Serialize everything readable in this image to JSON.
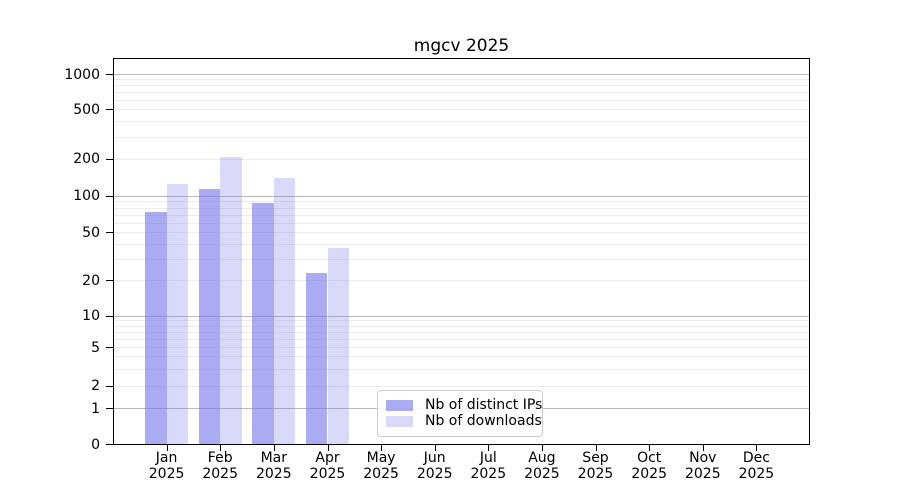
{
  "title": "mgcv 2025",
  "chart_data": {
    "type": "bar",
    "title": "mgcv 2025",
    "xlabel": "",
    "ylabel": "",
    "scale": "log-like (1-2-5 tick sequence, linear segment near 0)",
    "grid": true,
    "legend_position": "lower center",
    "ylim": [
      0,
      1350
    ],
    "yticks": [
      0,
      1,
      2,
      5,
      10,
      20,
      50,
      100,
      200,
      500,
      1000
    ],
    "major_grid_values": [
      1,
      10,
      100,
      1000
    ],
    "minor_grid_values": [
      2,
      3,
      4,
      5,
      6,
      7,
      8,
      9,
      20,
      30,
      40,
      50,
      60,
      70,
      80,
      90,
      200,
      300,
      400,
      500,
      600,
      700,
      800,
      900
    ],
    "categories": [
      "Jan 2025",
      "Feb 2025",
      "Mar 2025",
      "Apr 2025",
      "May 2025",
      "Jun 2025",
      "Jul 2025",
      "Aug 2025",
      "Sep 2025",
      "Oct 2025",
      "Nov 2025",
      "Dec 2025"
    ],
    "series": [
      {
        "name": "Nb of distinct IPs",
        "color": "rgba(120,120,238,0.62)",
        "values": [
          74,
          114,
          87,
          23,
          0,
          0,
          0,
          0,
          0,
          0,
          0,
          0
        ]
      },
      {
        "name": "Nb of downloads",
        "color": "rgba(130,130,240,0.30)",
        "values": [
          124,
          205,
          140,
          37,
          0,
          0,
          0,
          0,
          0,
          0,
          0,
          0
        ]
      }
    ]
  },
  "colors": {
    "distinct_ips_bar": "#a9a9f0",
    "downloads_bar": "#d9d9f9",
    "major_gridline": "#b9b9b9",
    "minor_gridline": "#ebebeb",
    "axis": "#000000",
    "legend_border": "#cbcbcb"
  }
}
